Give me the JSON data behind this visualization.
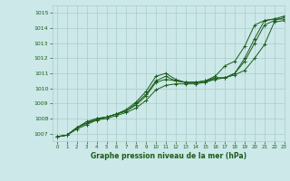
{
  "bg_color": "#cce8e8",
  "grid_color": "#aacccc",
  "line_color": "#1a5c1a",
  "title": "Graphe pression niveau de la mer (hPa)",
  "xlim": [
    -0.5,
    23
  ],
  "ylim": [
    1006.5,
    1015.5
  ],
  "yticks": [
    1007,
    1008,
    1009,
    1010,
    1011,
    1012,
    1013,
    1014,
    1015
  ],
  "xticks": [
    0,
    1,
    2,
    3,
    4,
    5,
    6,
    7,
    8,
    9,
    10,
    11,
    12,
    13,
    14,
    15,
    16,
    17,
    18,
    19,
    20,
    21,
    22,
    23
  ],
  "series": [
    [
      1006.8,
      1006.9,
      1007.4,
      1007.7,
      1008.0,
      1008.1,
      1008.3,
      1008.5,
      1009.0,
      1009.6,
      1010.5,
      1010.8,
      1010.5,
      1010.4,
      1010.4,
      1010.4,
      1010.7,
      1010.7,
      1011.0,
      1011.8,
      1013.0,
      1014.2,
      1014.5,
      1014.7
    ],
    [
      1006.8,
      1006.9,
      1007.4,
      1007.8,
      1008.0,
      1008.1,
      1008.3,
      1008.6,
      1009.1,
      1009.8,
      1010.8,
      1011.0,
      1010.6,
      1010.4,
      1010.4,
      1010.5,
      1010.7,
      1010.7,
      1011.0,
      1012.0,
      1013.3,
      1014.5,
      1014.6,
      1014.8
    ],
    [
      1006.8,
      1006.9,
      1007.4,
      1007.7,
      1007.9,
      1008.1,
      1008.3,
      1008.5,
      1008.9,
      1009.5,
      1010.4,
      1010.6,
      1010.5,
      1010.4,
      1010.4,
      1010.5,
      1010.8,
      1011.5,
      1011.8,
      1012.8,
      1014.2,
      1014.5,
      1014.6,
      1014.6
    ],
    [
      1006.8,
      1006.9,
      1007.3,
      1007.6,
      1007.9,
      1008.0,
      1008.2,
      1008.4,
      1008.7,
      1009.2,
      1009.9,
      1010.2,
      1010.3,
      1010.3,
      1010.3,
      1010.4,
      1010.6,
      1010.7,
      1010.9,
      1011.2,
      1012.0,
      1012.9,
      1014.4,
      1014.5
    ]
  ]
}
